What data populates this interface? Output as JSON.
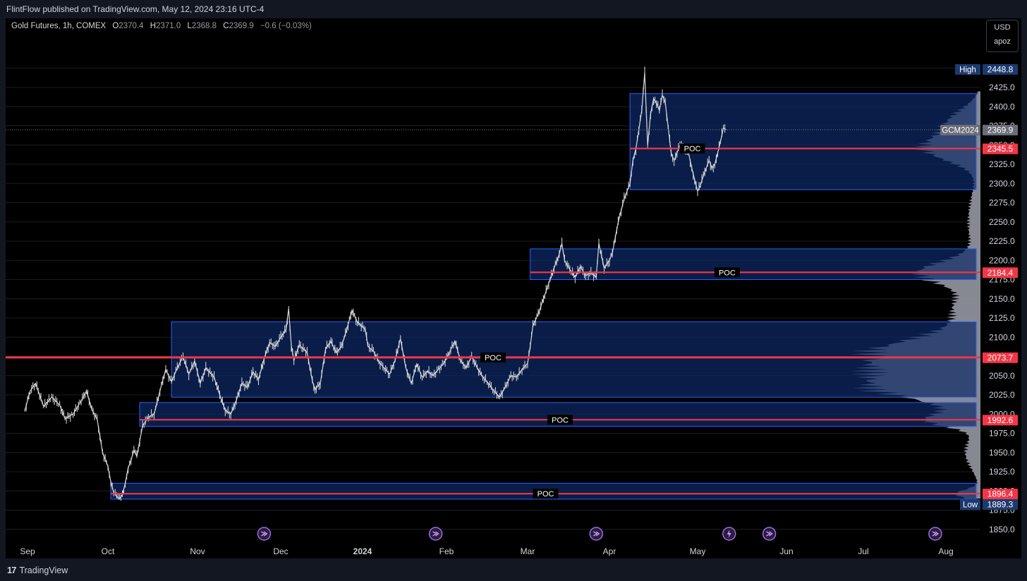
{
  "header": {
    "published": "FlintFlow published on TradingView.com, May 12, 2024 23:16 UTC-4"
  },
  "legend": {
    "symbol": "Gold Futures, 1h, COMEX",
    "o_label": "O",
    "o": "2370.4",
    "h_label": "H",
    "h": "2371.0",
    "l_label": "L",
    "l": "2368.8",
    "c_label": "C",
    "c": "2369.9",
    "change": "−0.6 (−0.03%)"
  },
  "unit_box": {
    "currency": "USD",
    "user": "apoz"
  },
  "footer": {
    "brand": "TradingView",
    "logo": "17"
  },
  "colors": {
    "background": "#000000",
    "candle": "#e0e0e0",
    "range_fill": "#0d2a66",
    "range_border": "#2962ff",
    "poc": "#f23645",
    "profile": "#9598a1",
    "tag_blue": "#1c3a6e",
    "tag_gray": "#6a6d78"
  },
  "chart_data": {
    "type": "line",
    "title": "Gold Futures, 1h, COMEX",
    "x_axis": {
      "labels": [
        "Sep",
        "Oct",
        "Nov",
        "Dec",
        "2024",
        "Feb",
        "Mar",
        "Apr",
        "May",
        "Jun",
        "Jul",
        "Aug"
      ],
      "bold": [
        "2024"
      ]
    },
    "y_axis": {
      "ticks": [
        "1850.0",
        "1875.0",
        "1900.0",
        "1925.0",
        "1950.0",
        "1975.0",
        "2000.0",
        "2025.0",
        "2050.0",
        "2075.0",
        "2100.0",
        "2125.0",
        "2150.0",
        "2175.0",
        "2200.0",
        "2225.0",
        "2250.0",
        "2275.0",
        "2300.0",
        "2325.0",
        "2350.0",
        "2375.0",
        "2400.0",
        "2425.0"
      ],
      "ylim": [
        1837.5,
        2475
      ]
    },
    "series": [
      {
        "values": [
          [
            "Aug 31",
            2005
          ],
          [
            "Sep 02",
            2030
          ],
          [
            "Sep 04",
            2040
          ],
          [
            "Sep 07",
            2010
          ],
          [
            "Sep 10",
            2022
          ],
          [
            "Sep 13",
            2012
          ],
          [
            "Sep 15",
            1994
          ],
          [
            "Sep 18",
            2000
          ],
          [
            "Sep 21",
            2017
          ],
          [
            "Sep 23",
            2030
          ],
          [
            "Sep 25",
            2006
          ],
          [
            "Sep 27",
            1993
          ],
          [
            "Sep 29",
            1950
          ],
          [
            "Oct 01",
            1932
          ],
          [
            "Oct 02",
            1912
          ],
          [
            "Oct 03",
            1898
          ],
          [
            "Oct 04",
            1893
          ],
          [
            "Oct 05",
            1890
          ],
          [
            "Oct 06",
            1895
          ],
          [
            "Oct 07",
            1910
          ],
          [
            "Oct 08",
            1930
          ],
          [
            "Oct 09",
            1940
          ],
          [
            "Oct 10",
            1953
          ],
          [
            "Oct 11",
            1945
          ],
          [
            "Oct 13",
            1985
          ],
          [
            "Oct 15",
            1996
          ],
          [
            "Oct 17",
            2000
          ],
          [
            "Oct 19",
            2030
          ],
          [
            "Oct 21",
            2058
          ],
          [
            "Oct 23",
            2042
          ],
          [
            "Oct 25",
            2060
          ],
          [
            "Oct 27",
            2075
          ],
          [
            "Oct 29",
            2052
          ],
          [
            "Oct 31",
            2069
          ],
          [
            "Nov 02",
            2040
          ],
          [
            "Nov 04",
            2060
          ],
          [
            "Nov 07",
            2048
          ],
          [
            "Nov 09",
            2025
          ],
          [
            "Nov 11",
            2005
          ],
          [
            "Nov 13",
            2000
          ],
          [
            "Nov 15",
            2018
          ],
          [
            "Nov 17",
            2040
          ],
          [
            "Nov 19",
            2035
          ],
          [
            "Nov 21",
            2055
          ],
          [
            "Nov 23",
            2045
          ],
          [
            "Nov 25",
            2072
          ],
          [
            "Nov 27",
            2093
          ],
          [
            "Nov 29",
            2088
          ],
          [
            "Dec 01",
            2100
          ],
          [
            "Dec 03",
            2110
          ],
          [
            "Dec 04",
            2137
          ],
          [
            "Dec 05",
            2089
          ],
          [
            "Dec 06",
            2070
          ],
          [
            "Dec 08",
            2090
          ],
          [
            "Dec 11",
            2080
          ],
          [
            "Dec 13",
            2043
          ],
          [
            "Dec 14",
            2032
          ],
          [
            "Dec 16",
            2040
          ],
          [
            "Dec 18",
            2085
          ],
          [
            "Dec 20",
            2095
          ],
          [
            "Dec 22",
            2080
          ],
          [
            "Dec 24",
            2088
          ],
          [
            "Dec 26",
            2110
          ],
          [
            "Dec 28",
            2135
          ],
          [
            "Dec 30",
            2120
          ],
          [
            "Jan 02",
            2110
          ],
          [
            "Jan 03",
            2088
          ],
          [
            "Jan 05",
            2082
          ],
          [
            "Jan 07",
            2068
          ],
          [
            "Jan 09",
            2060
          ],
          [
            "Jan 11",
            2052
          ],
          [
            "Jan 13",
            2070
          ],
          [
            "Jan 15",
            2098
          ],
          [
            "Jan 17",
            2060
          ],
          [
            "Jan 19",
            2040
          ],
          [
            "Jan 21",
            2065
          ],
          [
            "Jan 23",
            2048
          ],
          [
            "Jan 25",
            2056
          ],
          [
            "Jan 27",
            2050
          ],
          [
            "Jan 29",
            2058
          ],
          [
            "Jan 31",
            2066
          ],
          [
            "Feb 02",
            2080
          ],
          [
            "Feb 04",
            2095
          ],
          [
            "Feb 06",
            2070
          ],
          [
            "Feb 08",
            2060
          ],
          [
            "Feb 10",
            2075
          ],
          [
            "Feb 12",
            2060
          ],
          [
            "Feb 14",
            2048
          ],
          [
            "Feb 16",
            2040
          ],
          [
            "Feb 18",
            2030
          ],
          [
            "Feb 20",
            2022
          ],
          [
            "Feb 22",
            2035
          ],
          [
            "Feb 24",
            2050
          ],
          [
            "Feb 26",
            2048
          ],
          [
            "Feb 28",
            2058
          ],
          [
            "Mar 01",
            2066
          ],
          [
            "Mar 02",
            2088
          ],
          [
            "Mar 03",
            2115
          ],
          [
            "Mar 05",
            2130
          ],
          [
            "Mar 07",
            2150
          ],
          [
            "Mar 09",
            2170
          ],
          [
            "Mar 11",
            2190
          ],
          [
            "Mar 13",
            2208
          ],
          [
            "Mar 14",
            2222
          ],
          [
            "Mar 15",
            2200
          ],
          [
            "Mar 17",
            2188
          ],
          [
            "Mar 19",
            2178
          ],
          [
            "Mar 21",
            2192
          ],
          [
            "Mar 23",
            2180
          ],
          [
            "Mar 25",
            2184
          ],
          [
            "Mar 27",
            2178
          ],
          [
            "Mar 28",
            2222
          ],
          [
            "Mar 30",
            2190
          ],
          [
            "Apr 01",
            2200
          ],
          [
            "Apr 02",
            2210
          ],
          [
            "Apr 04",
            2250
          ],
          [
            "Apr 06",
            2280
          ],
          [
            "Apr 08",
            2300
          ],
          [
            "Apr 09",
            2330
          ],
          [
            "Apr 10",
            2345
          ],
          [
            "Apr 11",
            2370
          ],
          [
            "Apr 12",
            2395
          ],
          [
            "Apr 13",
            2444
          ],
          [
            "Apr 14",
            2350
          ],
          [
            "Apr 15",
            2390
          ],
          [
            "Apr 16",
            2410
          ],
          [
            "Apr 17",
            2405
          ],
          [
            "Apr 18",
            2395
          ],
          [
            "Apr 19",
            2415
          ],
          [
            "Apr 20",
            2405
          ],
          [
            "Apr 22",
            2340
          ],
          [
            "Apr 23",
            2330
          ],
          [
            "Apr 24",
            2340
          ],
          [
            "Apr 25",
            2350
          ],
          [
            "Apr 26",
            2346
          ],
          [
            "Apr 28",
            2338
          ],
          [
            "Apr 29",
            2320
          ],
          [
            "Apr 30",
            2305
          ],
          [
            "May 01",
            2290
          ],
          [
            "May 02",
            2298
          ],
          [
            "May 03",
            2310
          ],
          [
            "May 05",
            2330
          ],
          [
            "May 06",
            2320
          ],
          [
            "May 07",
            2325
          ],
          [
            "May 08",
            2340
          ],
          [
            "May 09",
            2355
          ],
          [
            "May 10",
            2372
          ],
          [
            "May 11",
            2370
          ]
        ]
      }
    ],
    "ranges": [
      {
        "from": "Oct 02",
        "to_edge": "right",
        "top": 1910,
        "bottom": 1889.3,
        "poc": 1896.4,
        "poc_label": "POC",
        "price_tag": "1896.4"
      },
      {
        "from": "Oct 12",
        "to_edge": "right",
        "top": 2015,
        "bottom": 1984,
        "poc": 1992.6,
        "poc_label": "POC",
        "price_tag": "1992.6"
      },
      {
        "from": "Oct 23",
        "to_edge": "right",
        "top": 2120,
        "bottom": 2022,
        "poc": 2073.7,
        "poc_label": "POC",
        "price_tag": "2073.7"
      },
      {
        "from": "Mar 02",
        "to_edge": "right",
        "top": 2215,
        "bottom": 2175,
        "poc": 2184.4,
        "poc_label": "POC",
        "price_tag": "2184.4"
      },
      {
        "from": "Apr 08",
        "to_edge": "right",
        "top": 2417,
        "bottom": 2292,
        "poc": 2345.5,
        "poc_label": "POC",
        "price_tag": "2345.5"
      }
    ],
    "extremes": {
      "high_label": "High",
      "high": "2448.8",
      "low_label": "Low",
      "low": "1889.3"
    },
    "last_price": {
      "symbol": "GCM2024",
      "value": "2369.9"
    },
    "event_markers": [
      {
        "icon": "split-arrow-icon",
        "date": "Nov 25"
      },
      {
        "icon": "split-arrow-icon",
        "date": "Jan 28"
      },
      {
        "icon": "split-arrow-icon",
        "date": "Mar 27"
      },
      {
        "icon": "lightning-icon",
        "date": "May 12"
      },
      {
        "icon": "split-arrow-icon",
        "date": "May 26"
      },
      {
        "icon": "split-arrow-icon",
        "date": "Jul 28"
      }
    ],
    "grid": true
  }
}
